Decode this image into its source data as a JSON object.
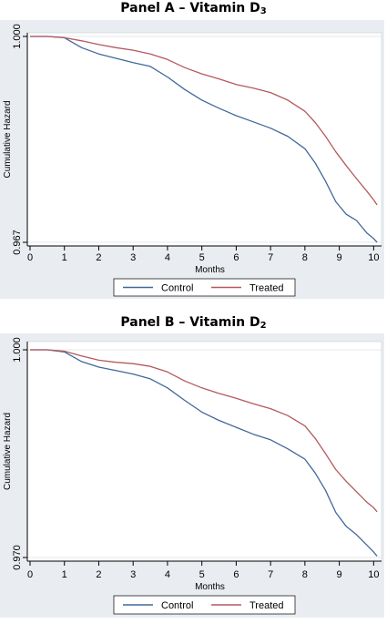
{
  "colors": {
    "background": "#ffffff",
    "plot_outer_bg": "#e9edf1",
    "plot_inner_bg": "#ffffff",
    "control_line": "#41689a",
    "treated_line": "#b4595d"
  },
  "chart_data": [
    {
      "type": "line",
      "title": {
        "text": "Panel A – Vitamin D",
        "subscript": "3"
      },
      "xlabel": "Months",
      "ylabel": "Cumulative Hazard",
      "xlim": [
        0,
        10.15
      ],
      "ylim": [
        0.967,
        1.0
      ],
      "x_ticks": [
        "0",
        "1",
        "2",
        "3",
        "4",
        "5",
        "6",
        "7",
        "8",
        "9",
        "10"
      ],
      "y_ticks": [
        "0.967",
        "1.000"
      ],
      "grid": false,
      "legend": "bottom",
      "series": [
        {
          "name": "Control",
          "color": "#41689a",
          "x": [
            0,
            0.5,
            1.0,
            1.5,
            2.0,
            2.5,
            3.0,
            3.5,
            4.0,
            4.5,
            5.0,
            5.5,
            6.0,
            6.5,
            7.0,
            7.5,
            8.0,
            8.3,
            8.6,
            8.9,
            9.2,
            9.5,
            9.8,
            10.0,
            10.1
          ],
          "y": [
            1.0,
            1.0,
            0.9998,
            0.9982,
            0.9972,
            0.9965,
            0.9958,
            0.9952,
            0.9935,
            0.9915,
            0.9898,
            0.9885,
            0.9873,
            0.9863,
            0.9853,
            0.984,
            0.982,
            0.9797,
            0.9768,
            0.9735,
            0.9715,
            0.9705,
            0.9685,
            0.9676,
            0.967
          ]
        },
        {
          "name": "Treated",
          "color": "#b4595d",
          "x": [
            0,
            0.5,
            1.0,
            1.5,
            2.0,
            2.5,
            3.0,
            3.5,
            4.0,
            4.5,
            5.0,
            5.5,
            6.0,
            6.5,
            7.0,
            7.5,
            8.0,
            8.3,
            8.6,
            8.9,
            9.2,
            9.5,
            9.8,
            10.0,
            10.1
          ],
          "y": [
            1.0,
            1.0,
            0.9998,
            0.9993,
            0.9987,
            0.9982,
            0.9978,
            0.9972,
            0.9963,
            0.995,
            0.994,
            0.9932,
            0.9923,
            0.9917,
            0.991,
            0.9898,
            0.988,
            0.9862,
            0.984,
            0.9815,
            0.9793,
            0.9772,
            0.9752,
            0.9738,
            0.973
          ]
        }
      ]
    },
    {
      "type": "line",
      "title": {
        "text": "Panel B – Vitamin D",
        "subscript": "2"
      },
      "xlabel": "Months",
      "ylabel": "Cumulative Hazard",
      "xlim": [
        0,
        10.15
      ],
      "ylim": [
        0.97,
        1.0
      ],
      "x_ticks": [
        "0",
        "1",
        "2",
        "3",
        "4",
        "5",
        "6",
        "7",
        "8",
        "9",
        "10"
      ],
      "y_ticks": [
        "0.970",
        "1.000"
      ],
      "grid": false,
      "legend": "bottom",
      "series": [
        {
          "name": "Control",
          "color": "#41689a",
          "x": [
            0,
            0.5,
            1.0,
            1.5,
            2.0,
            2.5,
            3.0,
            3.5,
            4.0,
            4.5,
            5.0,
            5.5,
            6.0,
            6.5,
            7.0,
            7.5,
            8.0,
            8.3,
            8.6,
            8.9,
            9.2,
            9.5,
            9.8,
            10.0,
            10.1
          ],
          "y": [
            1.0,
            1.0,
            0.9997,
            0.9983,
            0.9975,
            0.997,
            0.9965,
            0.9958,
            0.9945,
            0.9927,
            0.991,
            0.9898,
            0.9888,
            0.9878,
            0.987,
            0.9857,
            0.9842,
            0.9822,
            0.9797,
            0.9765,
            0.9745,
            0.9733,
            0.9718,
            0.9708,
            0.9702
          ]
        },
        {
          "name": "Treated",
          "color": "#b4595d",
          "x": [
            0,
            0.5,
            1.0,
            1.5,
            2.0,
            2.5,
            3.0,
            3.5,
            4.0,
            4.5,
            5.0,
            5.5,
            6.0,
            6.5,
            7.0,
            7.5,
            8.0,
            8.3,
            8.6,
            8.9,
            9.2,
            9.5,
            9.8,
            10.0,
            10.1
          ],
          "y": [
            1.0,
            1.0,
            0.9998,
            0.9991,
            0.9985,
            0.9982,
            0.998,
            0.9976,
            0.9968,
            0.9955,
            0.9945,
            0.9937,
            0.993,
            0.9922,
            0.9915,
            0.9905,
            0.989,
            0.9872,
            0.985,
            0.9827,
            0.981,
            0.9795,
            0.978,
            0.9772,
            0.9766
          ]
        }
      ]
    }
  ]
}
